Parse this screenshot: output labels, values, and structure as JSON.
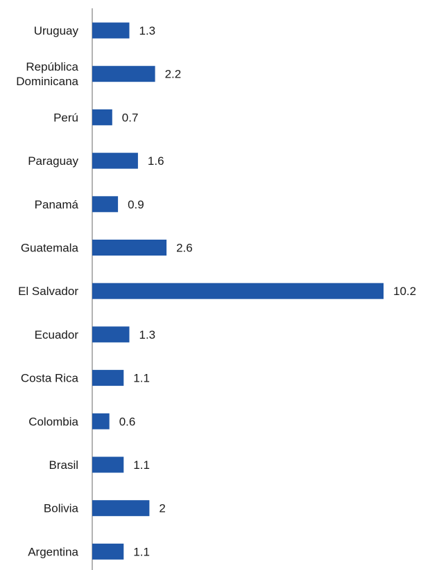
{
  "chart_data": {
    "type": "bar",
    "orientation": "horizontal",
    "categories": [
      "Uruguay",
      "República Dominicana",
      "Perú",
      "Paraguay",
      "Panamá",
      "Guatemala",
      "El Salvador",
      "Ecuador",
      "Costa Rica",
      "Colombia",
      "Brasil",
      "Bolivia",
      "Argentina"
    ],
    "category_lines": [
      [
        "Uruguay"
      ],
      [
        "República",
        "Dominicana"
      ],
      [
        "Perú"
      ],
      [
        "Paraguay"
      ],
      [
        "Panamá"
      ],
      [
        "Guatemala"
      ],
      [
        "El Salvador"
      ],
      [
        "Ecuador"
      ],
      [
        "Costa Rica"
      ],
      [
        "Colombia"
      ],
      [
        "Brasil"
      ],
      [
        "Bolivia"
      ],
      [
        "Argentina"
      ]
    ],
    "values": [
      1.3,
      2.2,
      0.7,
      1.6,
      0.9,
      2.6,
      10.2,
      1.3,
      1.1,
      0.6,
      1.1,
      2,
      1.1
    ],
    "value_labels": [
      "1.3",
      "2.2",
      "0.7",
      "1.6",
      "0.9",
      "2.6",
      "10.2",
      "1.3",
      "1.1",
      "0.6",
      "1.1",
      "2",
      "1.1"
    ],
    "xlim": [
      0,
      10.2
    ],
    "title": "",
    "xlabel": "",
    "ylabel": "",
    "grid": false,
    "legend": "none",
    "bar_color": "#1f57a8"
  }
}
